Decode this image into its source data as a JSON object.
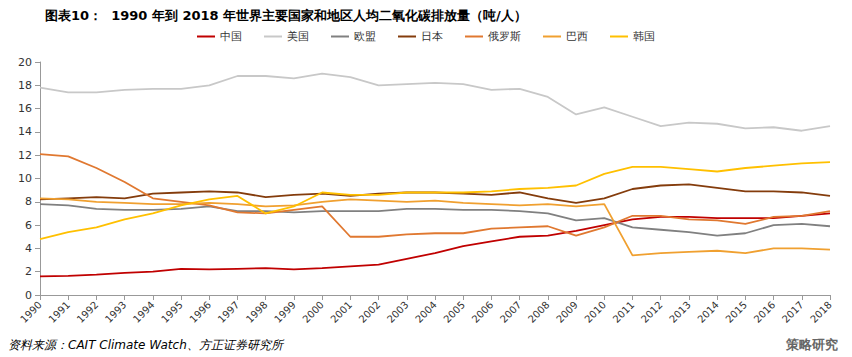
{
  "chart_data": {
    "type": "line",
    "title": "图表10：  1990 年到 2018 年世界主要国家和地区人均二氧化碳排放量（吨/人）",
    "source": "资料来源：CAIT Climate Watch、方正证券研究所",
    "watermark": "策略研究",
    "categories": [
      "1990",
      "1991",
      "1992",
      "1993",
      "1994",
      "1995",
      "1996",
      "1997",
      "1998",
      "1999",
      "2000",
      "2001",
      "2002",
      "2003",
      "2004",
      "2005",
      "2006",
      "2007",
      "2008",
      "2009",
      "2010",
      "2011",
      "2012",
      "2013",
      "2014",
      "2015",
      "2016",
      "2017",
      "2018"
    ],
    "series": [
      {
        "name": "中国",
        "color": "#c00000",
        "values": [
          1.6,
          1.65,
          1.75,
          1.9,
          2.0,
          2.25,
          2.2,
          2.25,
          2.3,
          2.2,
          2.3,
          2.45,
          2.6,
          3.1,
          3.6,
          4.2,
          4.6,
          5.0,
          5.1,
          5.5,
          6.0,
          6.5,
          6.7,
          6.7,
          6.6,
          6.6,
          6.6,
          6.8,
          7.0
        ]
      },
      {
        "name": "美国",
        "color": "#c8c8c8",
        "values": [
          17.8,
          17.4,
          17.4,
          17.6,
          17.7,
          17.7,
          18.0,
          18.8,
          18.8,
          18.6,
          19.0,
          18.7,
          18.0,
          18.1,
          18.2,
          18.1,
          17.6,
          17.7,
          17.0,
          15.5,
          16.1,
          15.3,
          14.5,
          14.8,
          14.7,
          14.3,
          14.4,
          14.1,
          14.5
        ]
      },
      {
        "name": "欧盟",
        "color": "#808080",
        "values": [
          7.8,
          7.7,
          7.4,
          7.3,
          7.3,
          7.4,
          7.6,
          7.2,
          7.2,
          7.1,
          7.2,
          7.2,
          7.2,
          7.4,
          7.4,
          7.3,
          7.3,
          7.2,
          7.0,
          6.4,
          6.6,
          5.8,
          5.6,
          5.4,
          5.1,
          5.3,
          6.0,
          6.1,
          5.9
        ]
      },
      {
        "name": "日本",
        "color": "#843c0c",
        "values": [
          8.2,
          8.3,
          8.4,
          8.3,
          8.7,
          8.8,
          8.9,
          8.8,
          8.4,
          8.6,
          8.7,
          8.5,
          8.7,
          8.8,
          8.8,
          8.7,
          8.6,
          8.8,
          8.3,
          7.9,
          8.3,
          9.1,
          9.4,
          9.5,
          9.2,
          8.9,
          8.9,
          8.8,
          8.5
        ]
      },
      {
        "name": "俄罗斯",
        "color": "#e07830",
        "values": [
          12.1,
          11.9,
          10.9,
          9.7,
          8.3,
          8.0,
          7.7,
          7.1,
          7.0,
          7.3,
          7.6,
          5.0,
          5.0,
          5.2,
          5.3,
          5.3,
          5.7,
          5.8,
          5.9,
          5.1,
          5.8,
          6.8,
          6.8,
          6.5,
          6.4,
          6.1,
          6.7,
          6.8,
          7.2
        ]
      },
      {
        "name": "巴西",
        "color": "#f0a030",
        "values": [
          8.3,
          8.2,
          8.0,
          7.9,
          7.8,
          7.8,
          7.9,
          7.8,
          7.6,
          7.7,
          8.0,
          8.2,
          8.1,
          8.0,
          8.1,
          7.9,
          7.8,
          7.7,
          7.8,
          7.6,
          7.8,
          3.4,
          3.6,
          3.7,
          3.8,
          3.6,
          4.0,
          4.0,
          3.9
        ]
      },
      {
        "name": "韩国",
        "color": "#ffc000",
        "values": [
          4.8,
          5.4,
          5.8,
          6.5,
          7.0,
          7.7,
          8.2,
          8.5,
          7.0,
          7.6,
          8.8,
          8.6,
          8.6,
          8.8,
          8.8,
          8.8,
          8.9,
          9.1,
          9.2,
          9.4,
          10.4,
          11.0,
          11.0,
          10.8,
          10.6,
          10.9,
          11.1,
          11.3,
          11.4
        ]
      }
    ],
    "ylim": [
      0,
      20
    ],
    "yticks": [
      0,
      2,
      4,
      6,
      8,
      10,
      12,
      14,
      16,
      18,
      20
    ],
    "grid": false,
    "legend": "top"
  }
}
